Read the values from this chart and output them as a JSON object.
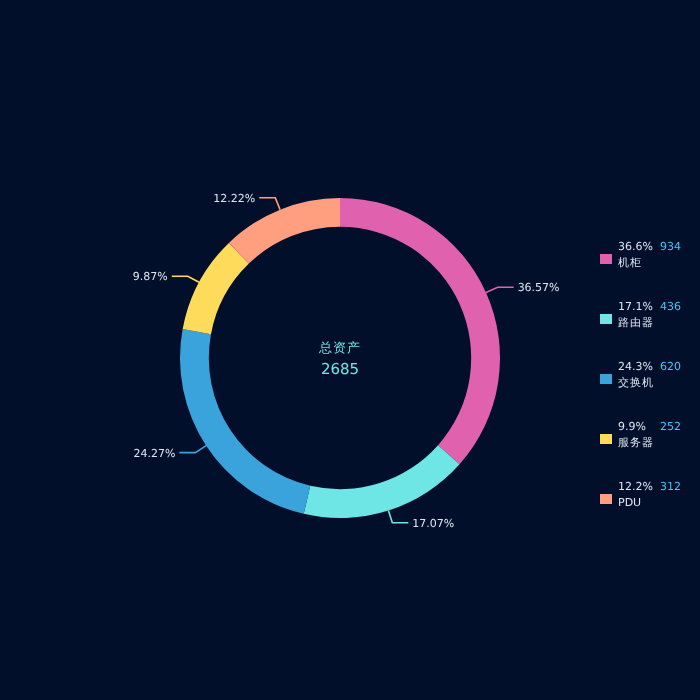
{
  "chart_data": {
    "type": "donut",
    "title": "总资产",
    "annotations": [
      "2685",
      "36.6%",
      "934",
      "17.1%",
      "436",
      "24.3%",
      "620",
      "9.9%",
      "252",
      "12.2%",
      "312"
    ],
    "categories": [
      "机柜",
      "路由器",
      "交换机",
      "服务器",
      "PDU"
    ],
    "values": [
      36.57,
      17.07,
      24.27,
      9.87,
      12.22
    ],
    "colors": [
      "#e062ae",
      "#6ee6e6",
      "#3ba3dc",
      "#ffdb5c",
      "#ff9f7f"
    ],
    "value_labels": [
      "36.57%",
      "17.07%",
      "24.27%",
      "9.87%",
      "12.22%"
    ],
    "legend": "right"
  }
}
